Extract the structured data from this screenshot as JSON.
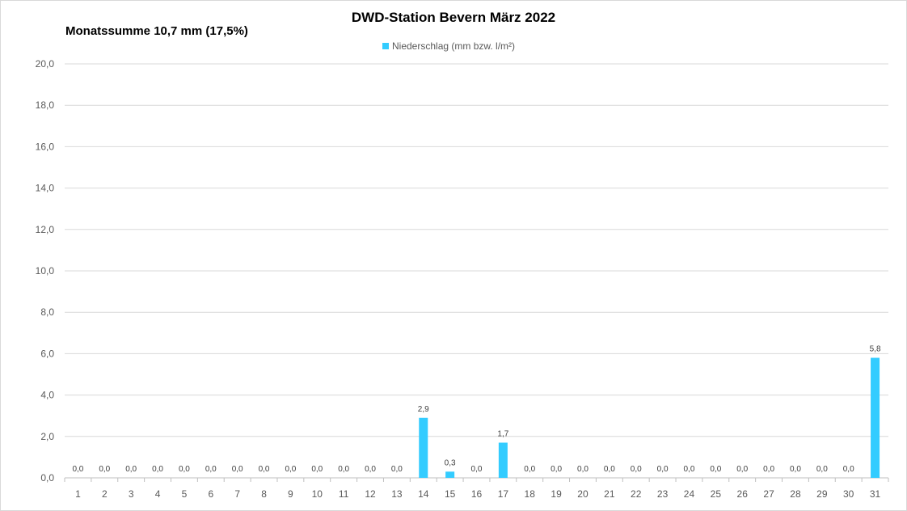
{
  "chart_data": {
    "type": "bar",
    "title": "DWD-Station  Bevern März 2022",
    "subtitle": "Monatssumme 10,7 mm  (17,5%)",
    "legend": {
      "entries": [
        "Niederschlag (mm bzw. l/m²)"
      ],
      "placement": "top-center"
    },
    "categories": [
      "1",
      "2",
      "3",
      "4",
      "5",
      "6",
      "7",
      "8",
      "9",
      "10",
      "11",
      "12",
      "13",
      "14",
      "15",
      "16",
      "17",
      "18",
      "19",
      "20",
      "21",
      "22",
      "23",
      "24",
      "25",
      "26",
      "27",
      "28",
      "29",
      "30",
      "31"
    ],
    "series": [
      {
        "name": "Niederschlag (mm bzw. l/m²)",
        "values": [
          0,
          0,
          0,
          0,
          0,
          0,
          0,
          0,
          0,
          0,
          0,
          0,
          0,
          2.9,
          0.3,
          0,
          1.7,
          0,
          0,
          0,
          0,
          0,
          0,
          0,
          0,
          0,
          0,
          0,
          0,
          0,
          5.8
        ],
        "data_labels": [
          "0,0",
          "0,0",
          "0,0",
          "0,0",
          "0,0",
          "0,0",
          "0,0",
          "0,0",
          "0,0",
          "0,0",
          "0,0",
          "0,0",
          "0,0",
          "2,9",
          "0,3",
          "0,0",
          "1,7",
          "0,0",
          "0,0",
          "0,0",
          "0,0",
          "0,0",
          "0,0",
          "0,0",
          "0,0",
          "0,0",
          "0,0",
          "0,0",
          "0,0",
          "0,0",
          "5,8"
        ]
      }
    ],
    "ylim": [
      0,
      20
    ],
    "y_ticks": [
      0,
      2,
      4,
      6,
      8,
      10,
      12,
      14,
      16,
      18,
      20
    ],
    "y_tick_labels": [
      "0,0",
      "2,0",
      "4,0",
      "6,0",
      "8,0",
      "10,0",
      "12,0",
      "14,0",
      "16,0",
      "18,0",
      "20,0"
    ],
    "xlabel": "",
    "ylabel": "",
    "grid": true,
    "colors": {
      "bar": "#33ccff",
      "grid": "#d9d9d9",
      "axis": "#bfbfbf"
    }
  }
}
